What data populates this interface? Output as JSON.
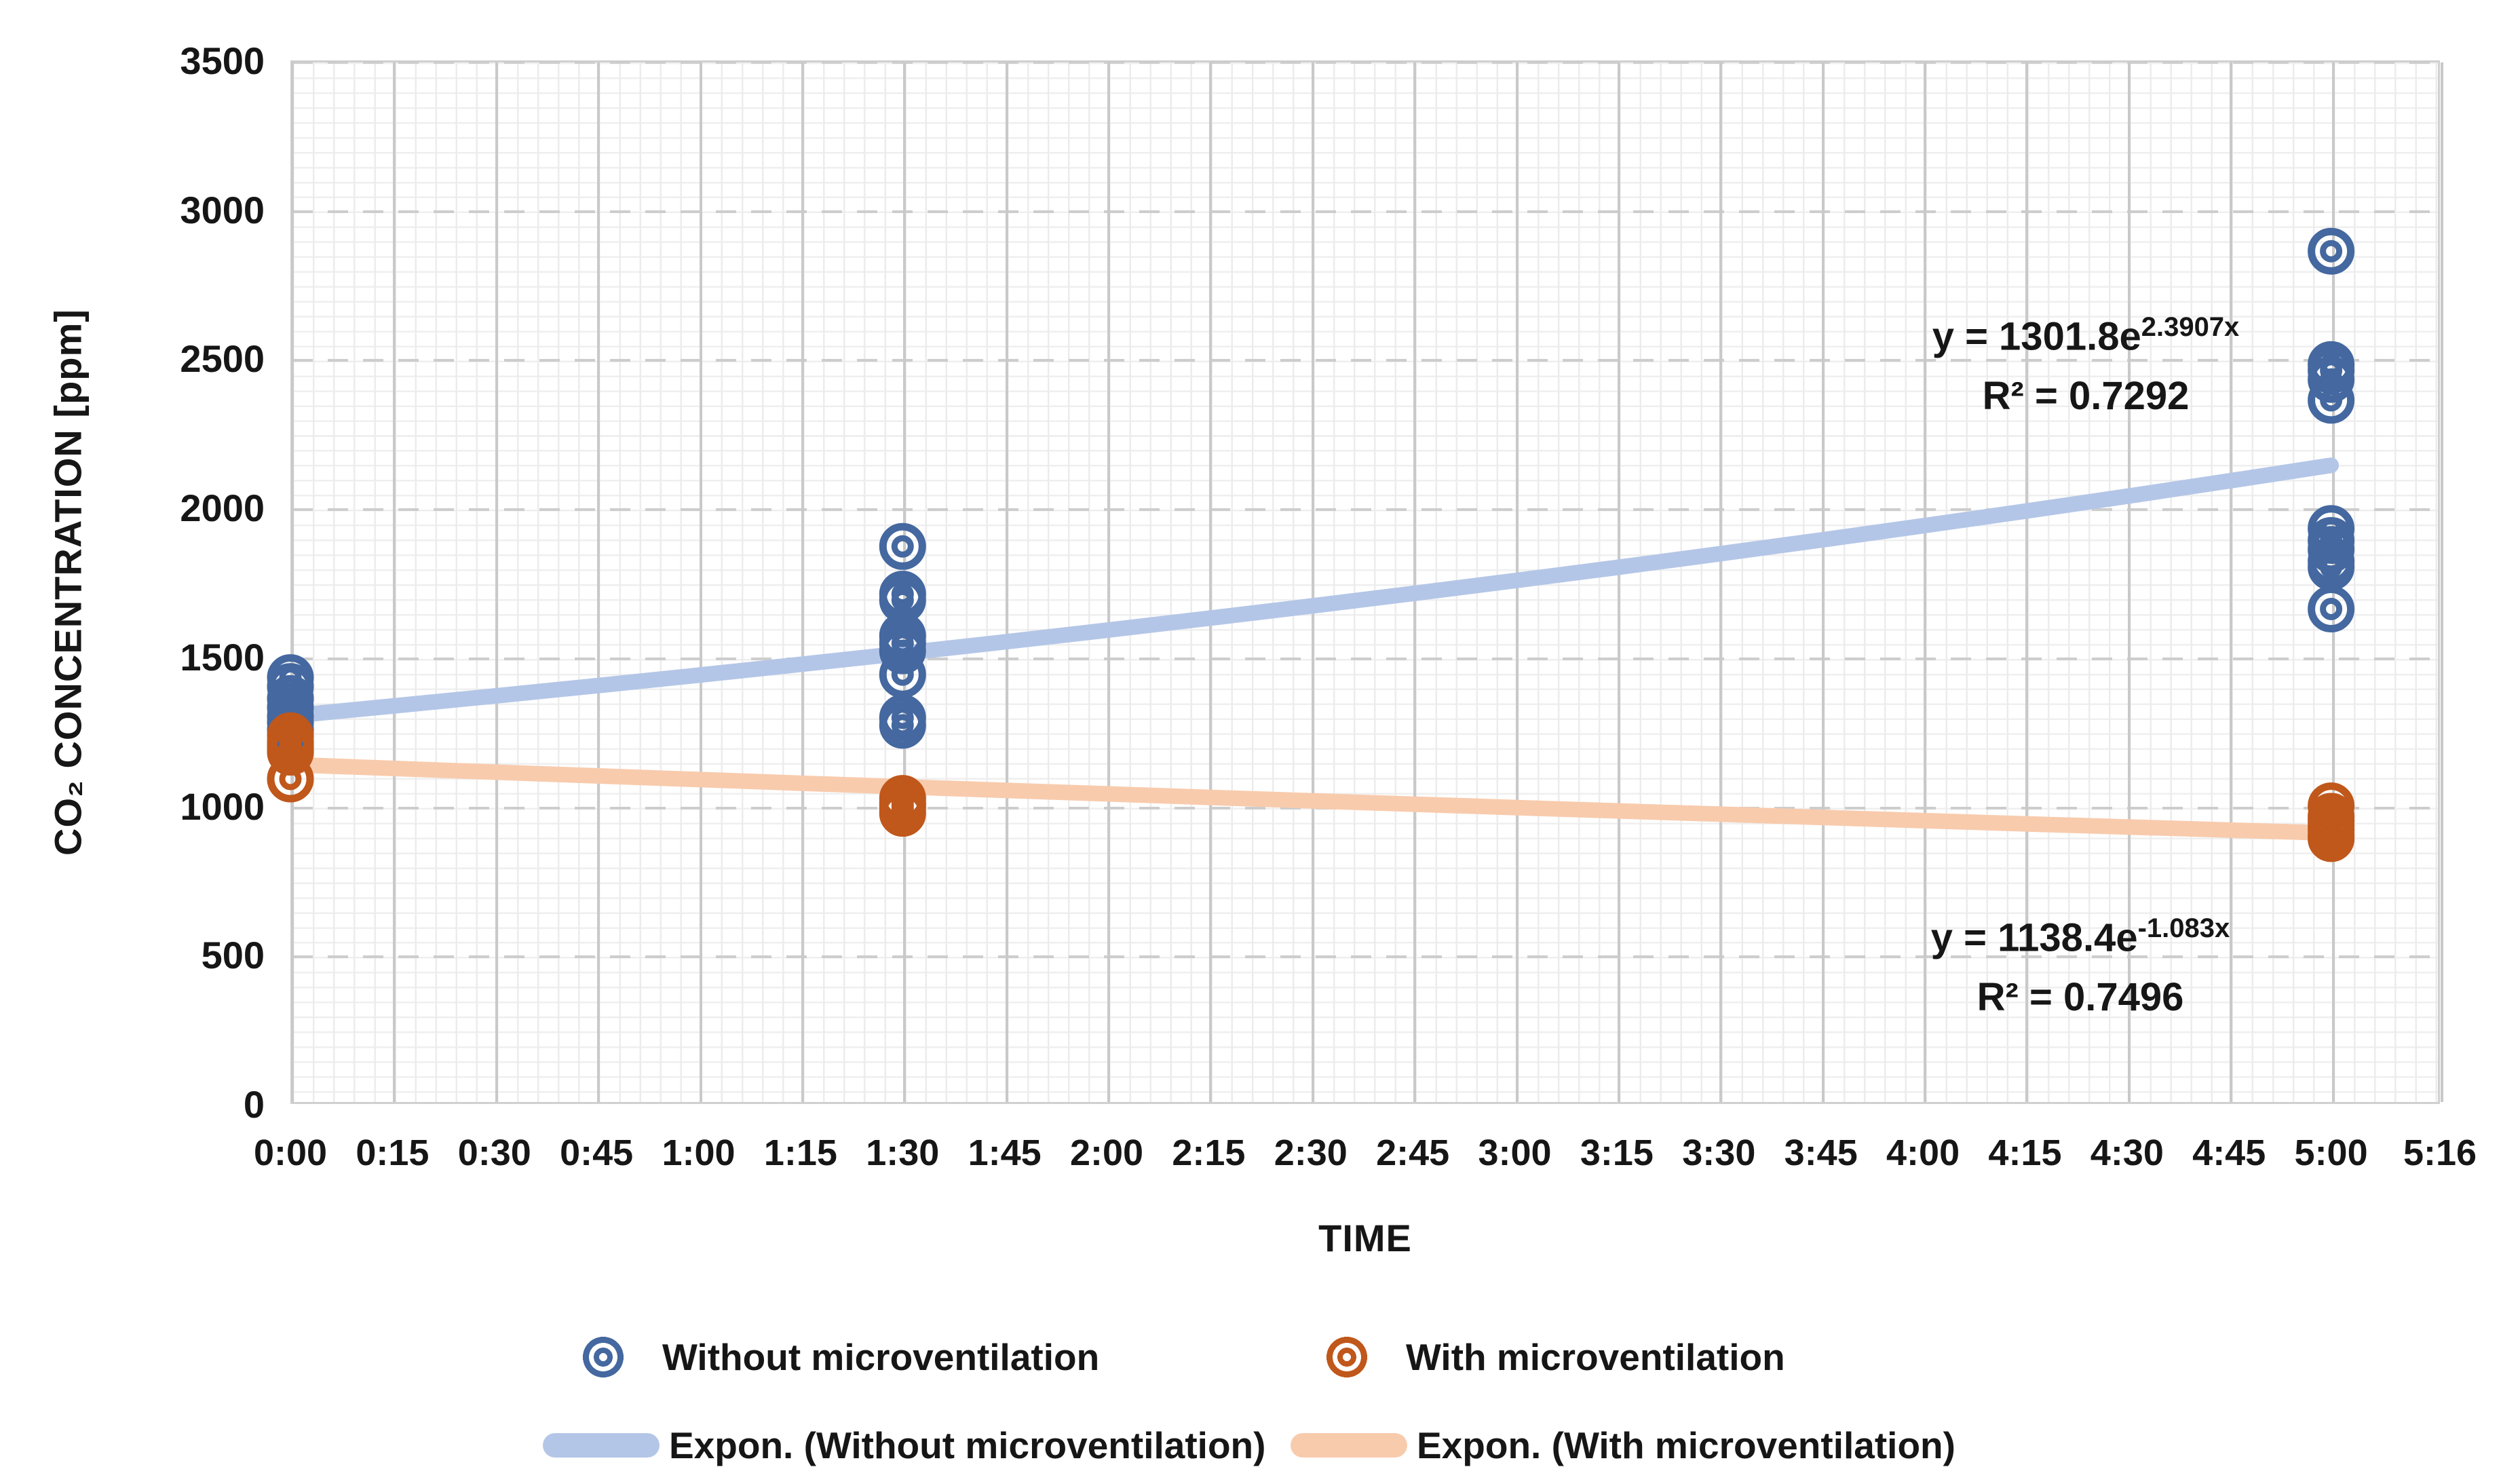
{
  "chart_data": {
    "type": "scatter",
    "title": "",
    "xlabel": "TIME",
    "ylabel": "CO₂ CONCENTRATION [ppm]",
    "x_axis": {
      "unit": "h:mm",
      "total_minutes": 316,
      "ticks": [
        {
          "label": "0:00",
          "min": 0
        },
        {
          "label": "0:15",
          "min": 15
        },
        {
          "label": "0:30",
          "min": 30
        },
        {
          "label": "0:45",
          "min": 45
        },
        {
          "label": "1:00",
          "min": 60
        },
        {
          "label": "1:15",
          "min": 75
        },
        {
          "label": "1:30",
          "min": 90
        },
        {
          "label": "1:45",
          "min": 105
        },
        {
          "label": "2:00",
          "min": 120
        },
        {
          "label": "2:15",
          "min": 135
        },
        {
          "label": "2:30",
          "min": 150
        },
        {
          "label": "2:45",
          "min": 165
        },
        {
          "label": "3:00",
          "min": 180
        },
        {
          "label": "3:15",
          "min": 195
        },
        {
          "label": "3:30",
          "min": 210
        },
        {
          "label": "3:45",
          "min": 225
        },
        {
          "label": "4:00",
          "min": 240
        },
        {
          "label": "4:15",
          "min": 255
        },
        {
          "label": "4:30",
          "min": 270
        },
        {
          "label": "4:45",
          "min": 285
        },
        {
          "label": "5:00",
          "min": 300
        },
        {
          "label": "5:16",
          "min": 316
        }
      ]
    },
    "y_axis": {
      "ylim": [
        0,
        3500
      ],
      "ticks": [
        {
          "label": "0",
          "v": 0
        },
        {
          "label": "500",
          "v": 500
        },
        {
          "label": "1000",
          "v": 1000
        },
        {
          "label": "1500",
          "v": 1500
        },
        {
          "label": "2000",
          "v": 2000
        },
        {
          "label": "2500",
          "v": 2500
        },
        {
          "label": "3000",
          "v": 3000
        },
        {
          "label": "3500",
          "v": 3500
        }
      ]
    },
    "grid": {
      "minor_x_minutes": 3,
      "minor_y_ppm": 50,
      "major_dashed": true
    },
    "series": [
      {
        "name": "Without microventilation",
        "marker": "concentric-rings",
        "color": "#44689f",
        "points": [
          [
            0,
            1430
          ],
          [
            0,
            1400
          ],
          [
            0,
            1360
          ],
          [
            0,
            1330
          ],
          [
            0,
            1300
          ],
          [
            0,
            1280
          ],
          [
            0,
            1255
          ],
          [
            90,
            1870
          ],
          [
            90,
            1710
          ],
          [
            90,
            1690
          ],
          [
            90,
            1570
          ],
          [
            90,
            1545
          ],
          [
            90,
            1520
          ],
          [
            90,
            1440
          ],
          [
            90,
            1295
          ],
          [
            90,
            1270
          ],
          [
            300,
            2860
          ],
          [
            300,
            2480
          ],
          [
            300,
            2460
          ],
          [
            300,
            2430
          ],
          [
            300,
            2360
          ],
          [
            300,
            1930
          ],
          [
            300,
            1890
          ],
          [
            300,
            1860
          ],
          [
            300,
            1820
          ],
          [
            300,
            1800
          ],
          [
            300,
            1660
          ]
        ]
      },
      {
        "name": "With microventilation",
        "marker": "concentric-rings",
        "color": "#c0571b",
        "points": [
          [
            0,
            1235
          ],
          [
            0,
            1215
          ],
          [
            0,
            1200
          ],
          [
            0,
            1190
          ],
          [
            0,
            1180
          ],
          [
            0,
            1090
          ],
          [
            90,
            1025
          ],
          [
            90,
            1010
          ],
          [
            90,
            1000
          ],
          [
            90,
            990
          ],
          [
            90,
            975
          ],
          [
            300,
            1000
          ],
          [
            300,
            965
          ],
          [
            300,
            950
          ],
          [
            300,
            935
          ],
          [
            300,
            920
          ],
          [
            300,
            900
          ],
          [
            300,
            890
          ]
        ]
      }
    ],
    "trendlines": [
      {
        "name": "Expon. (Without microventilation)",
        "color": "#b4c6e7",
        "a": 1301.8,
        "b_per_day": 2.3907,
        "t_start_min": 0,
        "t_end_min": 300,
        "eq_base": "y = 1301.8e",
        "eq_sup": "2.3907x",
        "r2_label": "R² = 0.7292"
      },
      {
        "name": "Expon. (With microventilation)",
        "color": "#f8cbad",
        "a": 1138.4,
        "b_per_day": -1.083,
        "t_start_min": 0,
        "t_end_min": 300,
        "eq_base": "y = 1138.4e",
        "eq_sup": "-1.083x",
        "r2_label": "R² = 0.7496"
      }
    ]
  }
}
